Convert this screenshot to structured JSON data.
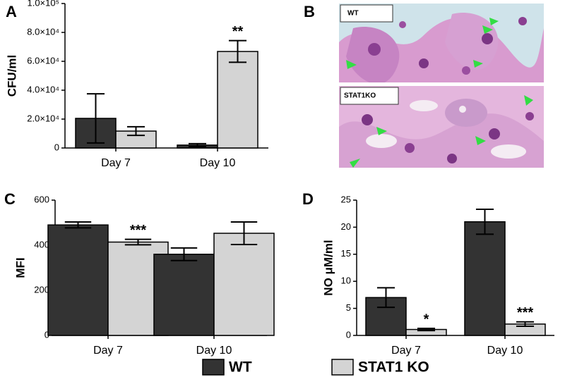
{
  "chart_data": [
    {
      "type": "bar",
      "panel": "A",
      "ylabel": "CFU/ml",
      "categories": [
        "Day 7",
        "Day 10"
      ],
      "series": [
        {
          "color": "#333333",
          "values": [
            20500,
            2000
          ],
          "errors": [
            17000,
            1000
          ]
        },
        {
          "color": "#d4d4d4",
          "values": [
            11700,
            66800
          ],
          "errors": [
            3000,
            7500
          ],
          "labels": [
            null,
            "**"
          ]
        }
      ],
      "ylim": [
        0,
        100000
      ],
      "yticks": [
        0,
        {
          "value": 20000,
          "label": "2.0×10⁴"
        },
        {
          "value": 40000,
          "label": "4.0×10⁴"
        },
        {
          "value": 60000,
          "label": "6.0×10⁴"
        },
        {
          "value": 80000,
          "label": "8.0×10⁴"
        },
        {
          "value": 100000,
          "label": "1.0×10⁵"
        }
      ]
    },
    {
      "type": "bar",
      "panel": "C",
      "ylabel": "MFI",
      "categories": [
        "Day 7",
        "Day 10"
      ],
      "series": [
        {
          "color": "#333333",
          "values": [
            490,
            360
          ],
          "errors": [
            13,
            28
          ]
        },
        {
          "color": "#d4d4d4",
          "values": [
            414,
            453
          ],
          "errors": [
            12,
            50
          ],
          "labels": [
            "***",
            null
          ]
        }
      ],
      "ylim": [
        0,
        600
      ],
      "yticks": [
        0,
        200,
        400,
        600
      ]
    },
    {
      "type": "bar",
      "panel": "D",
      "ylabel": "NO μM/ml",
      "categories": [
        "Day 7",
        "Day 10"
      ],
      "series": [
        {
          "color": "#333333",
          "values": [
            7.0,
            21.0
          ],
          "errors": [
            1.8,
            2.3
          ]
        },
        {
          "color": "#d4d4d4",
          "values": [
            1.1,
            2.1
          ],
          "errors": [
            0.2,
            0.4
          ],
          "labels": [
            "*",
            "***"
          ]
        }
      ],
      "ylim": [
        0,
        25
      ],
      "yticks": [
        0,
        5,
        10,
        15,
        20,
        25
      ]
    }
  ],
  "panel_b": {
    "letter": "B",
    "image_labels": [
      "WT",
      "STAT1KO"
    ]
  },
  "legend": [
    {
      "name": "WT",
      "color": "#333333"
    },
    {
      "name": "STAT1 KO",
      "color": "#d4d4d4"
    }
  ]
}
